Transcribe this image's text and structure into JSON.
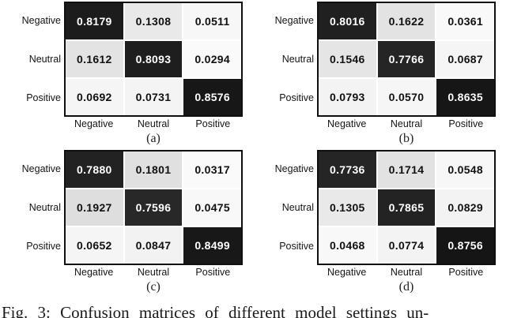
{
  "chart_data": [
    {
      "type": "heatmap",
      "title": "(a)",
      "rows": [
        "Negative",
        "Neutral",
        "Positive"
      ],
      "columns": [
        "Negative",
        "Neutral",
        "Positive"
      ],
      "values": [
        [
          0.8179,
          0.1308,
          0.0511
        ],
        [
          0.1612,
          0.8093,
          0.0294
        ],
        [
          0.0692,
          0.0731,
          0.8576
        ]
      ]
    },
    {
      "type": "heatmap",
      "title": "(b)",
      "rows": [
        "Negative",
        "Neutral",
        "Positive"
      ],
      "columns": [
        "Negative",
        "Neutral",
        "Positive"
      ],
      "values": [
        [
          0.8016,
          0.1622,
          0.0361
        ],
        [
          0.1546,
          0.7766,
          0.0687
        ],
        [
          0.0793,
          0.057,
          0.8635
        ]
      ]
    },
    {
      "type": "heatmap",
      "title": "(c)",
      "rows": [
        "Negative",
        "Neutral",
        "Positive"
      ],
      "columns": [
        "Negative",
        "Neutral",
        "Positive"
      ],
      "values": [
        [
          0.788,
          0.1801,
          0.0317
        ],
        [
          0.1927,
          0.7596,
          0.0475
        ],
        [
          0.0652,
          0.0847,
          0.8499
        ]
      ]
    },
    {
      "type": "heatmap",
      "title": "(d)",
      "rows": [
        "Negative",
        "Neutral",
        "Positive"
      ],
      "columns": [
        "Negative",
        "Neutral",
        "Positive"
      ],
      "values": [
        [
          0.7736,
          0.1714,
          0.0548
        ],
        [
          0.1305,
          0.7865,
          0.0829
        ],
        [
          0.0468,
          0.0774,
          0.8756
        ]
      ]
    }
  ],
  "figure": {
    "caption": "Fig. 3: Confusion matrices of different model settings un-"
  },
  "colors": {
    "cell_min": "#fdfdfd",
    "cell_max": "#111111",
    "grid_border": "#0f0f0f",
    "gridline": "#ffffff",
    "text_dark": "#111111",
    "text_light": "#ffffff"
  }
}
